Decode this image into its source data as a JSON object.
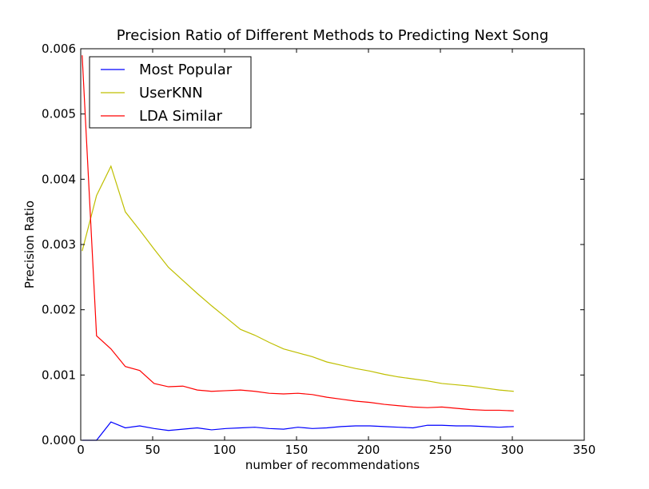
{
  "chart_data": {
    "type": "line",
    "title": "Precision Ratio of Different Methods to Predicting Next Song",
    "xlabel": "number of recommendations",
    "ylabel": "Precision Ratio",
    "xlim": [
      0,
      350
    ],
    "ylim": [
      0,
      0.006
    ],
    "xticks": [
      0,
      50,
      100,
      150,
      200,
      250,
      300,
      350
    ],
    "xtick_labels": [
      "0",
      "50",
      "100",
      "150",
      "200",
      "250",
      "300",
      "350"
    ],
    "yticks": [
      0,
      0.001,
      0.002,
      0.003,
      0.004,
      0.005,
      0.006
    ],
    "ytick_labels": [
      "0.000",
      "0.001",
      "0.002",
      "0.003",
      "0.004",
      "0.005",
      "0.006"
    ],
    "grid": false,
    "legend_position": "top-left",
    "x": [
      1,
      11,
      21,
      31,
      41,
      51,
      61,
      71,
      81,
      91,
      101,
      111,
      121,
      131,
      141,
      151,
      161,
      171,
      181,
      191,
      201,
      211,
      221,
      231,
      241,
      251,
      261,
      271,
      281,
      291,
      301
    ],
    "series": [
      {
        "name": "Most Popular",
        "color": "#0000ff",
        "values": [
          0.0,
          0.0,
          0.00028,
          0.00019,
          0.00022,
          0.00018,
          0.00015,
          0.00017,
          0.00019,
          0.00016,
          0.00018,
          0.00019,
          0.0002,
          0.00018,
          0.00017,
          0.0002,
          0.00018,
          0.00019,
          0.00021,
          0.00022,
          0.00022,
          0.00021,
          0.0002,
          0.00019,
          0.00023,
          0.00023,
          0.00022,
          0.00022,
          0.00021,
          0.0002,
          0.00021
        ]
      },
      {
        "name": "UserKNN",
        "color": "#bfbf00",
        "values": [
          0.0029,
          0.00375,
          0.0042,
          0.0035,
          0.00322,
          0.00293,
          0.00265,
          0.00245,
          0.00225,
          0.00206,
          0.00188,
          0.0017,
          0.00161,
          0.0015,
          0.0014,
          0.00134,
          0.00128,
          0.0012,
          0.00115,
          0.0011,
          0.00106,
          0.00101,
          0.00097,
          0.00094,
          0.00091,
          0.00087,
          0.00085,
          0.00083,
          0.0008,
          0.00077,
          0.00075
        ]
      },
      {
        "name": "LDA Similar",
        "color": "#ff0000",
        "values": [
          0.0059,
          0.0016,
          0.0014,
          0.00113,
          0.00107,
          0.00087,
          0.00082,
          0.00083,
          0.00077,
          0.00075,
          0.00076,
          0.00077,
          0.00075,
          0.00072,
          0.00071,
          0.00072,
          0.0007,
          0.00066,
          0.00063,
          0.0006,
          0.00058,
          0.00055,
          0.00053,
          0.00051,
          0.0005,
          0.00051,
          0.00049,
          0.00047,
          0.00046,
          0.00046,
          0.00045
        ]
      }
    ]
  }
}
